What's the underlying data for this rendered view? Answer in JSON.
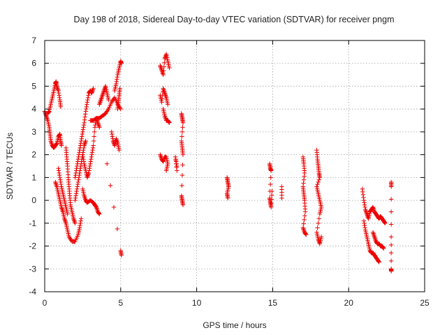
{
  "chart_data": {
    "type": "scatter",
    "title": "Day 198 of 2018, Sidereal Day-to-day VTEC variation (SDTVAR) for receiver pngm",
    "xlabel": "GPS time / hours",
    "ylabel": "SDTVAR / TECUs",
    "xlim": [
      0,
      25
    ],
    "ylim": [
      -4,
      7
    ],
    "xticks": [
      0,
      5,
      10,
      15,
      20,
      25
    ],
    "yticks": [
      -4,
      -3,
      -2,
      -1,
      0,
      1,
      2,
      3,
      4,
      5,
      6,
      7
    ],
    "grid": true,
    "marker": "+",
    "color": "#ee0000",
    "series": [
      {
        "name": "pngm",
        "tracks": [
          [
            [
              0.0,
              3.9
            ],
            [
              0.1,
              3.7
            ],
            [
              0.2,
              3.5
            ],
            [
              0.3,
              3.2
            ],
            [
              0.35,
              2.9
            ],
            [
              0.4,
              2.6
            ],
            [
              0.5,
              2.4
            ],
            [
              0.6,
              2.3
            ],
            [
              0.7,
              2.4
            ],
            [
              0.8,
              2.5
            ],
            [
              0.9,
              2.8
            ],
            [
              1.0,
              2.9
            ],
            [
              1.05,
              2.6
            ],
            [
              1.1,
              2.4
            ]
          ],
          [
            [
              0.2,
              3.8
            ],
            [
              0.3,
              3.9
            ],
            [
              0.4,
              4.2
            ],
            [
              0.5,
              4.5
            ],
            [
              0.6,
              4.8
            ],
            [
              0.7,
              5.1
            ],
            [
              0.75,
              5.2
            ],
            [
              0.8,
              5.0
            ],
            [
              0.9,
              4.8
            ],
            [
              1.0,
              4.4
            ],
            [
              1.05,
              4.1
            ]
          ],
          [
            [
              0.7,
              0.8
            ],
            [
              0.8,
              0.6
            ],
            [
              0.9,
              0.3
            ],
            [
              1.0,
              0.0
            ],
            [
              1.1,
              -0.3
            ],
            [
              1.2,
              -0.5
            ],
            [
              1.3,
              -0.8
            ],
            [
              1.4,
              -1.0
            ],
            [
              1.5,
              -1.3
            ],
            [
              1.6,
              -1.6
            ],
            [
              1.8,
              -1.8
            ],
            [
              2.0,
              -1.8
            ],
            [
              2.2,
              -1.5
            ],
            [
              2.3,
              -1.2
            ],
            [
              2.4,
              -0.8
            ]
          ],
          [
            [
              0.9,
              1.4
            ],
            [
              1.0,
              1.0
            ],
            [
              1.1,
              0.6
            ],
            [
              1.2,
              0.3
            ],
            [
              1.3,
              0.0
            ],
            [
              1.4,
              -0.3
            ],
            [
              1.5,
              -0.6
            ]
          ],
          [
            [
              1.4,
              2.3
            ],
            [
              1.45,
              1.9
            ],
            [
              1.5,
              1.5
            ],
            [
              1.55,
              1.0
            ],
            [
              1.6,
              0.6
            ],
            [
              1.65,
              0.2
            ],
            [
              1.7,
              -0.2
            ],
            [
              1.8,
              -0.5
            ],
            [
              1.9,
              -0.8
            ],
            [
              2.0,
              -1.0
            ]
          ],
          [
            [
              2.0,
              0.0
            ],
            [
              2.1,
              0.4
            ],
            [
              2.2,
              0.8
            ],
            [
              2.3,
              1.2
            ],
            [
              2.4,
              1.6
            ],
            [
              2.5,
              2.0
            ],
            [
              2.6,
              2.4
            ],
            [
              2.7,
              2.6
            ]
          ],
          [
            [
              2.0,
              1.0
            ],
            [
              2.1,
              1.4
            ],
            [
              2.2,
              1.8
            ],
            [
              2.3,
              2.2
            ],
            [
              2.4,
              2.6
            ],
            [
              2.5,
              3.0
            ],
            [
              2.6,
              3.4
            ],
            [
              2.7,
              3.9
            ],
            [
              2.8,
              4.3
            ],
            [
              2.9,
              4.7
            ],
            [
              3.0,
              4.8
            ],
            [
              3.1,
              4.7
            ],
            [
              3.2,
              4.9
            ]
          ],
          [
            [
              2.5,
              2.0
            ],
            [
              2.6,
              1.6
            ],
            [
              2.7,
              1.3
            ],
            [
              2.8,
              1.0
            ],
            [
              2.9,
              1.2
            ],
            [
              3.0,
              1.6
            ],
            [
              3.1,
              2.0
            ],
            [
              3.2,
              2.4
            ],
            [
              3.3,
              3.2
            ],
            [
              3.4,
              3.6
            ],
            [
              3.5,
              3.4
            ],
            [
              3.6,
              3.2
            ]
          ],
          [
            [
              2.5,
              0.5
            ],
            [
              2.6,
              0.2
            ],
            [
              2.7,
              0.0
            ],
            [
              2.8,
              -0.1
            ],
            [
              3.0,
              0.0
            ],
            [
              3.2,
              -0.1
            ],
            [
              3.3,
              -0.2
            ],
            [
              3.4,
              -0.3
            ],
            [
              3.5,
              -0.5
            ],
            [
              3.6,
              -0.6
            ]
          ],
          [
            [
              3.0,
              3.5
            ],
            [
              3.2,
              3.5
            ],
            [
              3.4,
              3.6
            ],
            [
              3.6,
              3.6
            ],
            [
              3.8,
              3.7
            ],
            [
              4.0,
              3.8
            ],
            [
              4.2,
              4.0
            ],
            [
              4.4,
              4.3
            ],
            [
              4.6,
              4.5
            ],
            [
              4.8,
              4.2
            ],
            [
              5.0,
              4.0
            ]
          ],
          [
            [
              3.6,
              4.2
            ],
            [
              3.7,
              4.4
            ],
            [
              3.8,
              4.6
            ],
            [
              3.9,
              4.8
            ],
            [
              4.0,
              5.0
            ],
            [
              4.1,
              4.7
            ],
            [
              4.2,
              4.4
            ]
          ],
          [
            [
              4.4,
              3.0
            ],
            [
              4.5,
              2.6
            ],
            [
              4.6,
              2.4
            ],
            [
              4.7,
              2.7
            ],
            [
              4.8,
              2.5
            ],
            [
              4.9,
              2.2
            ]
          ],
          [
            [
              4.6,
              4.8
            ],
            [
              4.7,
              5.1
            ],
            [
              4.8,
              5.5
            ],
            [
              4.9,
              5.8
            ],
            [
              5.0,
              6.1
            ],
            [
              5.05,
              6.0
            ]
          ],
          [
            [
              4.8,
              4.0
            ],
            [
              4.85,
              4.3
            ],
            [
              4.9,
              4.6
            ],
            [
              4.95,
              4.9
            ]
          ],
          [
            [
              4.1,
              1.6
            ],
            [
              5.0,
              -2.2
            ],
            [
              5.05,
              -2.4
            ]
          ],
          [
            [
              7.6,
              5.9
            ],
            [
              7.7,
              5.7
            ],
            [
              7.8,
              5.5
            ],
            [
              7.9,
              6.2
            ],
            [
              8.0,
              6.4
            ],
            [
              8.1,
              6.1
            ],
            [
              8.2,
              5.8
            ]
          ],
          [
            [
              7.6,
              4.6
            ],
            [
              7.7,
              4.3
            ],
            [
              7.8,
              4.9
            ],
            [
              7.9,
              4.7
            ],
            [
              8.0,
              4.5
            ],
            [
              8.1,
              4.2
            ]
          ],
          [
            [
              7.8,
              4.0
            ],
            [
              7.9,
              3.7
            ],
            [
              8.0,
              3.5
            ],
            [
              8.1,
              3.5
            ],
            [
              8.2,
              3.4
            ]
          ],
          [
            [
              7.6,
              2.0
            ],
            [
              7.7,
              1.8
            ],
            [
              7.8,
              1.7
            ],
            [
              7.9,
              1.9
            ],
            [
              8.0,
              1.9
            ],
            [
              8.1,
              1.6
            ],
            [
              8.0,
              1.3
            ]
          ],
          [
            [
              8.7,
              1.5
            ],
            [
              8.6,
              1.9
            ],
            [
              8.7,
              1.3
            ]
          ],
          [
            [
              9.0,
              3.8
            ],
            [
              9.05,
              3.6
            ],
            [
              9.1,
              3.4
            ],
            [
              9.0,
              2.6
            ],
            [
              9.05,
              2.3
            ],
            [
              9.1,
              2.0
            ],
            [
              9.0,
              0.2
            ],
            [
              9.05,
              0.0
            ],
            [
              9.1,
              -0.2
            ]
          ],
          [
            [
              12.0,
              1.0
            ],
            [
              12.05,
              0.8
            ],
            [
              12.1,
              0.6
            ],
            [
              12.0,
              0.3
            ],
            [
              12.05,
              0.1
            ]
          ],
          [
            [
              14.8,
              1.6
            ],
            [
              14.85,
              1.4
            ],
            [
              14.9,
              1.3
            ],
            [
              14.8,
              0.1
            ],
            [
              14.85,
              -0.1
            ],
            [
              14.9,
              -0.3
            ],
            [
              14.95,
              0.4
            ]
          ],
          [
            [
              15.6,
              0.6
            ],
            [
              15.6,
              0.1
            ]
          ],
          [
            [
              17.0,
              1.9
            ],
            [
              17.05,
              1.6
            ],
            [
              17.1,
              1.2
            ],
            [
              17.0,
              0.6
            ],
            [
              17.05,
              0.3
            ],
            [
              17.1,
              0.0
            ],
            [
              17.15,
              -0.5
            ],
            [
              17.0,
              -1.2
            ],
            [
              17.1,
              -1.4
            ],
            [
              17.2,
              -1.5
            ]
          ],
          [
            [
              17.9,
              2.2
            ],
            [
              17.95,
              1.8
            ],
            [
              18.0,
              1.5
            ],
            [
              18.05,
              1.2
            ],
            [
              18.1,
              1.0
            ],
            [
              17.9,
              0.6
            ],
            [
              18.0,
              0.3
            ],
            [
              18.1,
              0.0
            ],
            [
              18.2,
              -0.3
            ],
            [
              18.1,
              -0.6
            ],
            [
              17.9,
              -1.4
            ],
            [
              18.0,
              -1.7
            ],
            [
              18.1,
              -1.9
            ],
            [
              18.2,
              -1.6
            ]
          ],
          [
            [
              20.9,
              0.5
            ],
            [
              21.0,
              0.0
            ],
            [
              21.1,
              -0.4
            ],
            [
              21.2,
              -0.6
            ],
            [
              21.3,
              -0.8
            ],
            [
              21.4,
              -0.5
            ],
            [
              21.5,
              -0.4
            ],
            [
              21.6,
              -0.3
            ],
            [
              21.7,
              -0.5
            ],
            [
              21.8,
              -0.6
            ],
            [
              21.9,
              -0.7
            ],
            [
              22.0,
              -0.8
            ],
            [
              22.1,
              -0.7
            ],
            [
              22.2,
              -0.8
            ],
            [
              22.3,
              -0.9
            ],
            [
              22.4,
              -1.0
            ]
          ],
          [
            [
              21.0,
              -0.9
            ],
            [
              21.1,
              -1.3
            ],
            [
              21.2,
              -1.6
            ],
            [
              21.3,
              -1.9
            ],
            [
              21.4,
              -2.2
            ],
            [
              21.5,
              -2.3
            ],
            [
              21.6,
              -2.3
            ],
            [
              21.7,
              -2.4
            ],
            [
              21.8,
              -2.5
            ],
            [
              21.9,
              -2.6
            ],
            [
              22.0,
              -2.7
            ]
          ],
          [
            [
              21.6,
              -1.4
            ],
            [
              21.7,
              -1.6
            ],
            [
              21.8,
              -1.8
            ],
            [
              21.9,
              -1.9
            ],
            [
              22.0,
              -1.9
            ],
            [
              22.1,
              -2.0
            ],
            [
              22.2,
              -2.0
            ],
            [
              22.3,
              -2.1
            ]
          ],
          [
            [
              22.8,
              0.8
            ],
            [
              22.8,
              0.6
            ],
            [
              22.8,
              -1.6
            ],
            [
              22.8,
              -3.0
            ],
            [
              22.8,
              -3.1
            ]
          ]
        ]
      }
    ]
  }
}
